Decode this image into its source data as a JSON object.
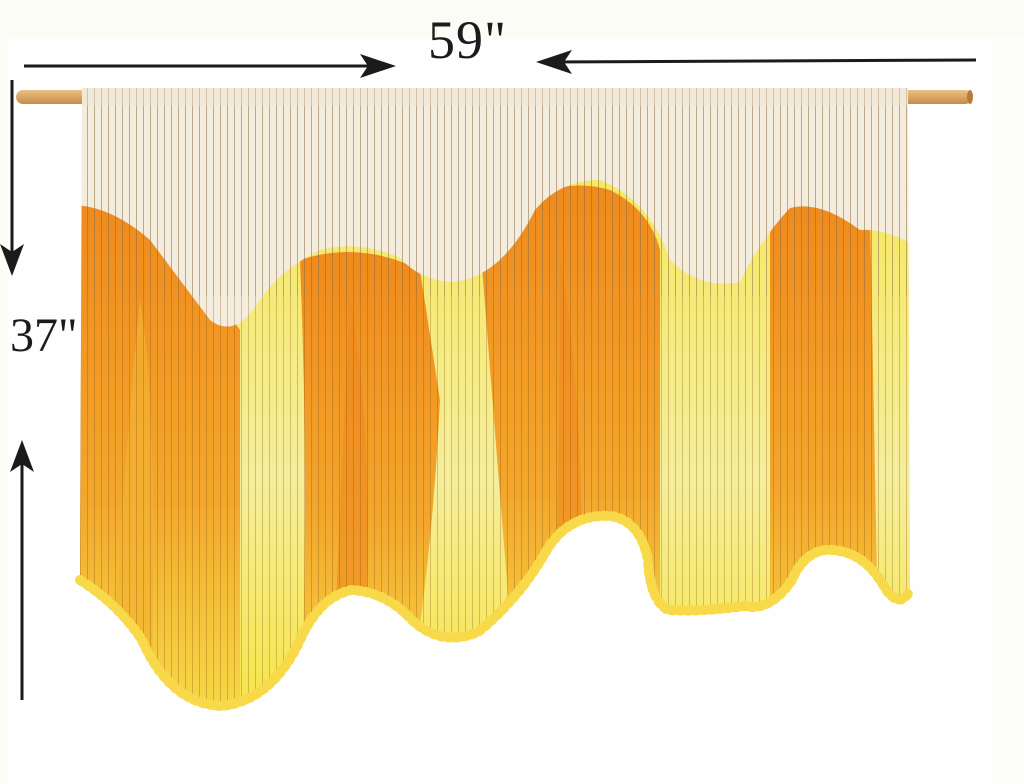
{
  "dimensions": {
    "width_label": "59\"",
    "height_label": "37\""
  },
  "colors": {
    "ink": "#1b1b1b",
    "dowel": "#d9a868",
    "cotton": "#f4ecdd",
    "orange": "#f08a1c",
    "yellow": "#f6e04a"
  }
}
